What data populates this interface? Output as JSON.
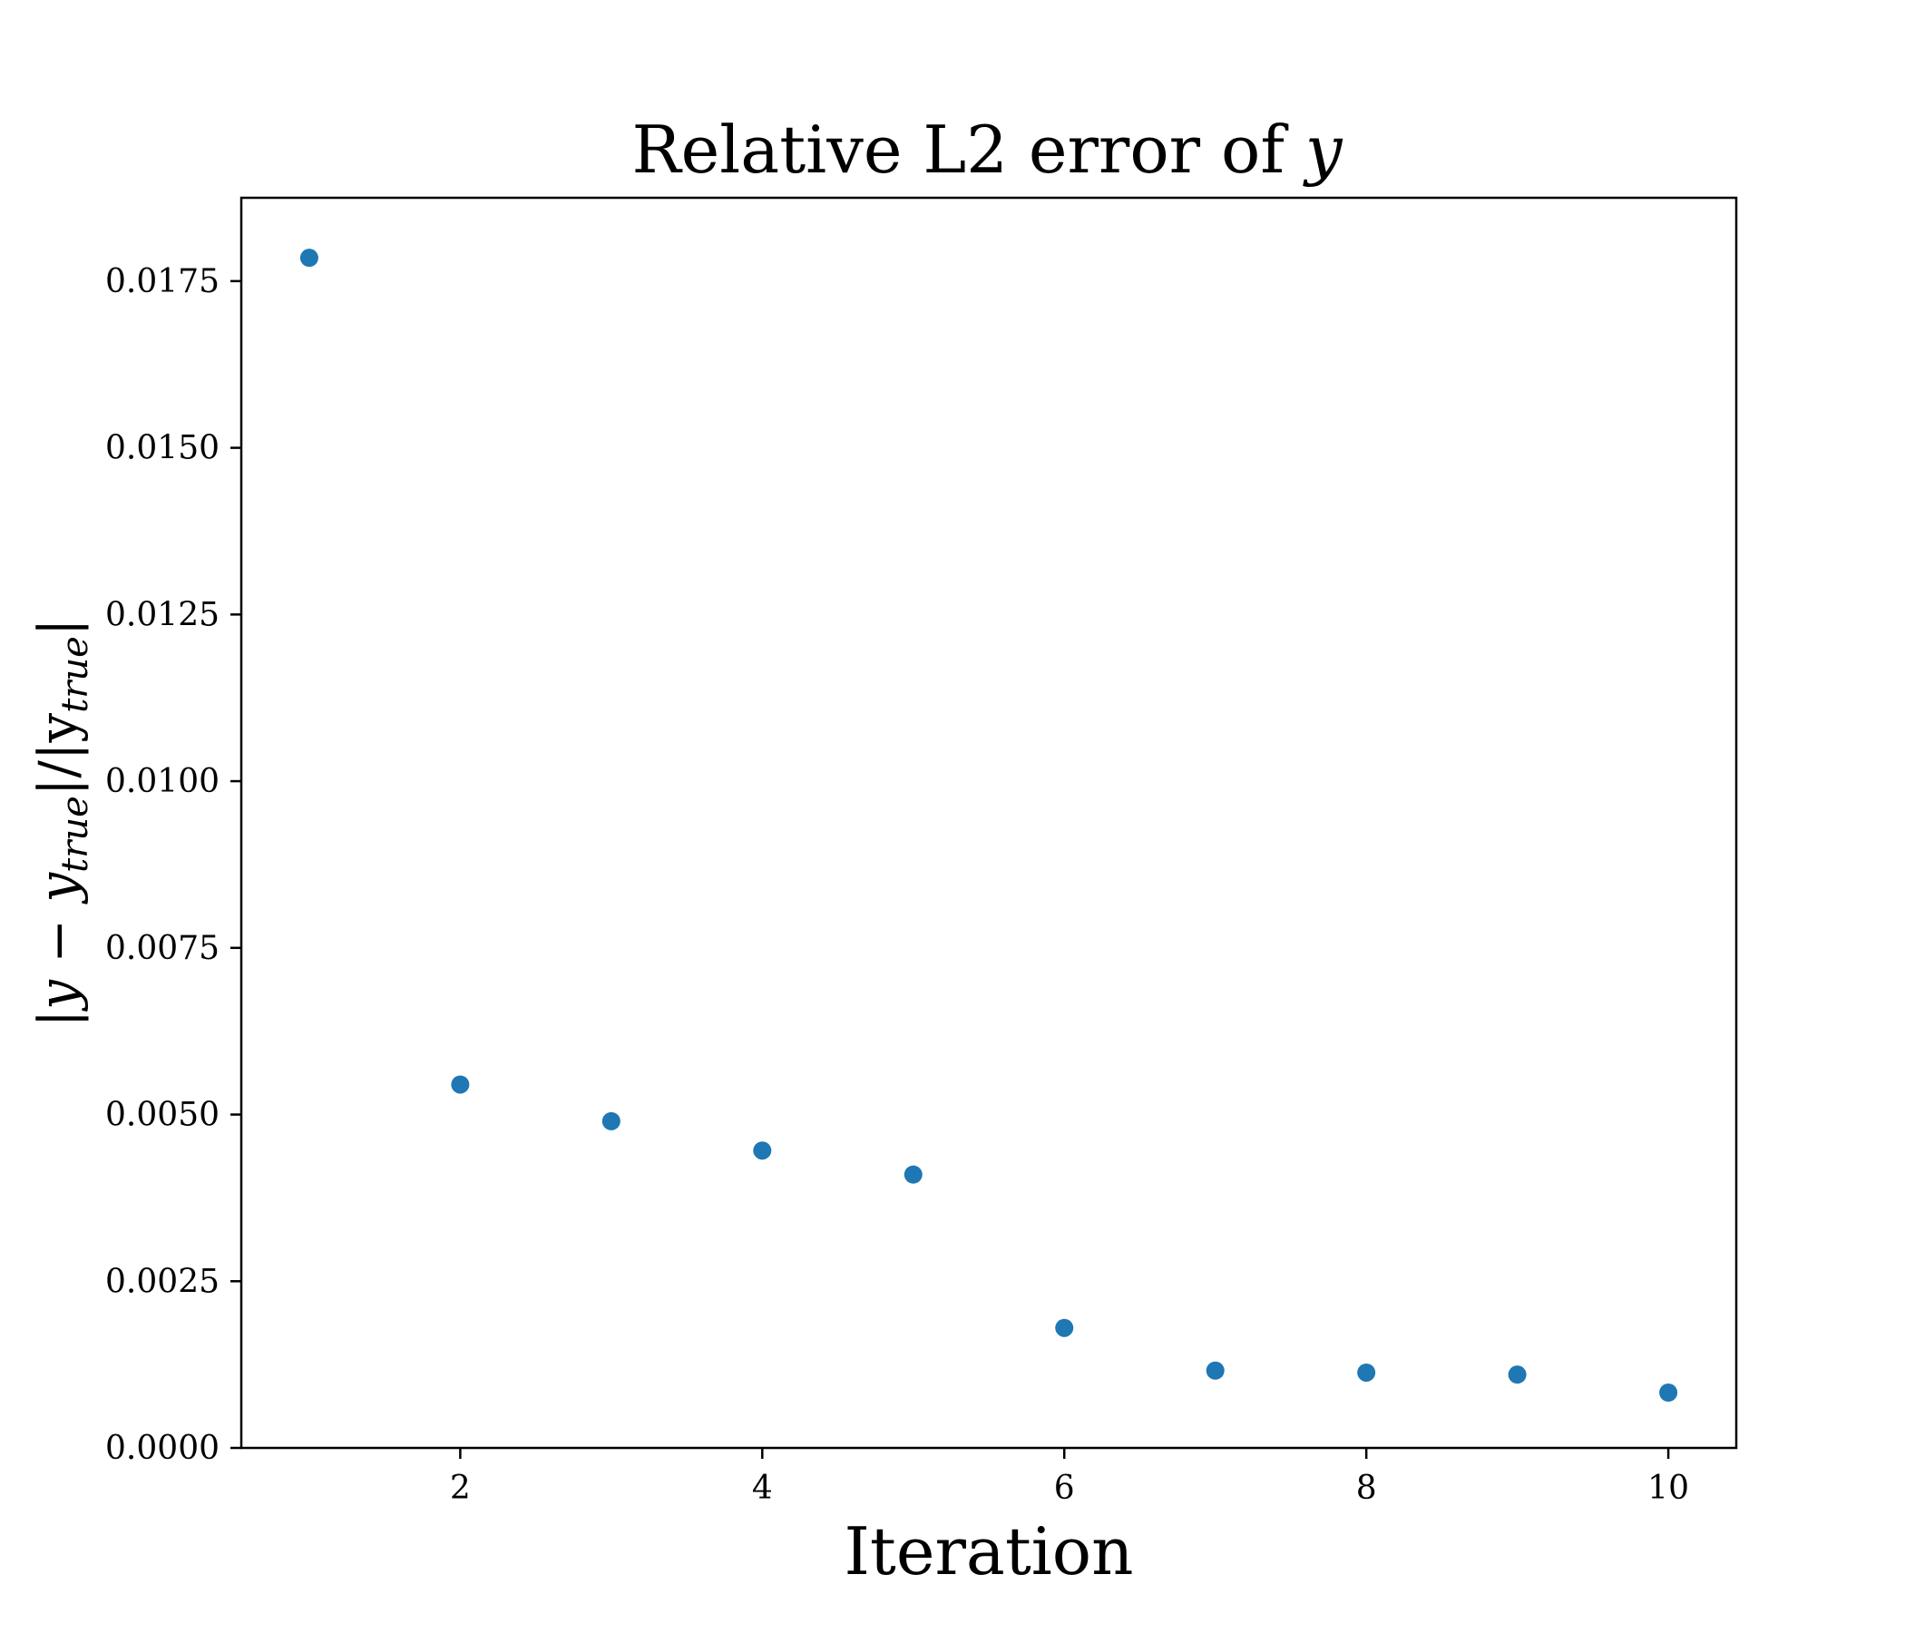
{
  "chart_data": {
    "type": "scatter",
    "title": "Relative L2 error of y",
    "title_parts": {
      "prefix": "Relative L2 error of ",
      "symbol": "y"
    },
    "xlabel": "Iteration",
    "ylabel": "|y − y_true|/|y_true|",
    "ylabel_parts": {
      "bar_left": "|",
      "y": "y",
      "minus": " − ",
      "y_true_base": "y",
      "y_true_sub": "true",
      "mid": "|/|",
      "denom_base": "y",
      "denom_sub": "true",
      "bar_right": "|"
    },
    "xlim": [
      0.55,
      10.45
    ],
    "ylim": [
      0,
      0.01875
    ],
    "x_ticks": [
      2,
      4,
      6,
      8,
      10
    ],
    "x_tick_labels": [
      "2",
      "4",
      "6",
      "8",
      "10"
    ],
    "y_ticks": [
      0.0,
      0.0025,
      0.005,
      0.0075,
      0.01,
      0.0125,
      0.015,
      0.0175
    ],
    "y_tick_labels": [
      "0.0000",
      "0.0025",
      "0.0050",
      "0.0075",
      "0.0100",
      "0.0125",
      "0.0150",
      "0.0175"
    ],
    "grid": false,
    "marker_color": "#1f77b4",
    "x": [
      1,
      2,
      3,
      4,
      5,
      6,
      7,
      8,
      9,
      10
    ],
    "y": [
      0.01785,
      0.00545,
      0.0049,
      0.00446,
      0.0041,
      0.0018,
      0.00116,
      0.00113,
      0.0011,
      0.00083
    ]
  }
}
